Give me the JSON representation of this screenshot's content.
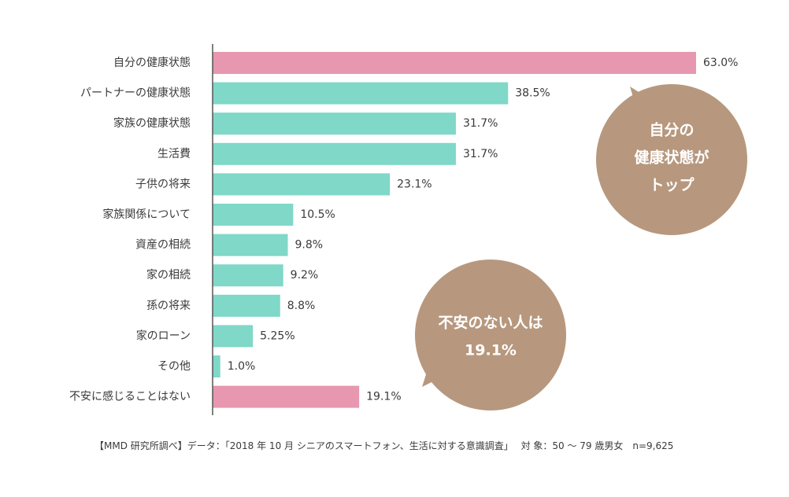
{
  "chart_data": {
    "type": "bar",
    "orientation": "horizontal",
    "categories": [
      "自分の健康状態",
      "パートナーの健康状態",
      "家族の健康状態",
      "生活費",
      "子供の将来",
      "家族関係について",
      "資産の相続",
      "家の相続",
      "孫の将来",
      "家のローン",
      "その他",
      "不安に感じることはない"
    ],
    "values": [
      63.0,
      38.5,
      31.7,
      31.7,
      23.1,
      10.5,
      9.8,
      9.2,
      8.8,
      5.25,
      1.0,
      19.1
    ],
    "value_labels": [
      "63.0%",
      "38.5%",
      "31.7%",
      "31.7%",
      "23.1%",
      "10.5%",
      "9.8%",
      "9.2%",
      "8.8%",
      "5.25%",
      "1.0%",
      "19.1%"
    ],
    "highlighted": [
      true,
      false,
      false,
      false,
      false,
      false,
      false,
      false,
      false,
      false,
      false,
      true
    ],
    "colors": {
      "highlight": "#e797b0",
      "normal": "#7fd8c8",
      "bubble": "#b7987e",
      "axis": "#555555"
    },
    "xlim": [
      0,
      63.0
    ],
    "grid": false
  },
  "callouts": {
    "top": [
      "自分の",
      "健康状態が",
      "トップ"
    ],
    "bottom": [
      "不安のない人は",
      "19.1%"
    ]
  },
  "source_note": "【MMD 研究所調べ】データ：「2018 年 10 月 シニアのスマートフォン、生活に対する意識調査」　 対 象：50 〜 79 歳男女　n=9,625"
}
